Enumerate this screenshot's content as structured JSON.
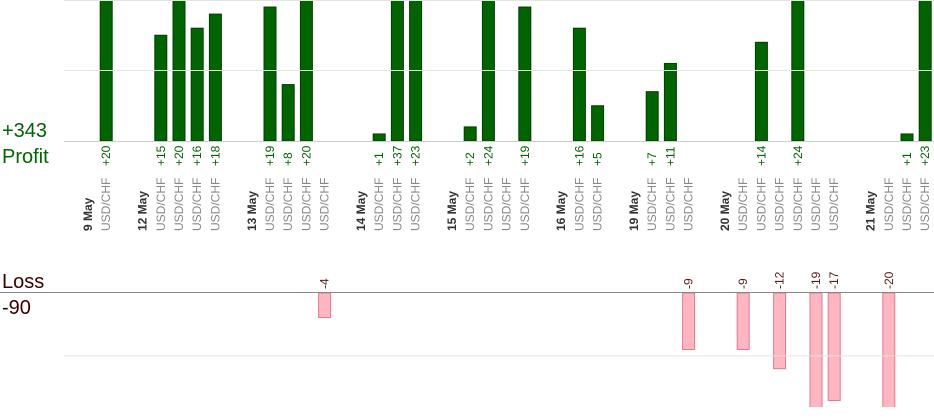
{
  "chart_data": {
    "type": "bar",
    "profit_total": {
      "value": 343,
      "label": "+343"
    },
    "profit_label": "Profit",
    "loss_label": "Loss",
    "loss_total": -90,
    "profit_color": "#006400",
    "loss_color": "#ffb6c1",
    "profit_ylim": [
      0,
      20
    ],
    "profit_yticks": [
      10,
      20
    ],
    "loss_ylim": [
      -18,
      0
    ],
    "loss_yticks": [
      -10
    ],
    "days": [
      {
        "date": "9 May",
        "trades": [
          {
            "pair": "USD/CHF",
            "value": 20,
            "value_label": "+20"
          }
        ]
      },
      {
        "date": "12 May",
        "trades": [
          {
            "pair": "USD/CHF",
            "value": 15,
            "value_label": "+15"
          },
          {
            "pair": "USD/CHF",
            "value": 20,
            "value_label": "+20"
          },
          {
            "pair": "USD/CHF",
            "value": 16,
            "value_label": "+16"
          },
          {
            "pair": "USD/CHF",
            "value": 18,
            "value_label": "+18"
          }
        ]
      },
      {
        "date": "13 May",
        "trades": [
          {
            "pair": "USD/CHF",
            "value": 19,
            "value_label": "+19"
          },
          {
            "pair": "USD/CHF",
            "value": 8,
            "value_label": "+8"
          },
          {
            "pair": "USD/CHF",
            "value": 20,
            "value_label": "+20"
          },
          {
            "pair": "USD/CHF",
            "value": -4
          }
        ]
      },
      {
        "date": "14 May",
        "trades": [
          {
            "pair": "USD/CHF",
            "value": 1,
            "value_label": "+1"
          },
          {
            "pair": "USD/CHF",
            "value": 37,
            "value_label": "+37"
          },
          {
            "pair": "USD/CHF",
            "value": 23,
            "value_label": "+23"
          }
        ]
      },
      {
        "date": "15 May",
        "trades": [
          {
            "pair": "USD/CHF",
            "value": 2,
            "value_label": "+2"
          },
          {
            "pair": "USD/CHF",
            "value": 24,
            "value_label": "+24"
          },
          {
            "pair": "USD/CHF",
            "value": null
          },
          {
            "pair": "USD/CHF",
            "value": 19,
            "value_label": "+19"
          }
        ]
      },
      {
        "date": "16 May",
        "trades": [
          {
            "pair": "USD/CHF",
            "value": 16,
            "value_label": "+16"
          },
          {
            "pair": "USD/CHF",
            "value": 5,
            "value_label": "+5"
          }
        ]
      },
      {
        "date": "19 May",
        "trades": [
          {
            "pair": "USD/CHF",
            "value": 7,
            "value_label": "+7"
          },
          {
            "pair": "USD/CHF",
            "value": 11,
            "value_label": "+11"
          },
          {
            "pair": "USD/CHF",
            "value": -9
          }
        ]
      },
      {
        "date": "20 May",
        "trades": [
          {
            "pair": "USD/CHF",
            "value": -9
          },
          {
            "pair": "USD/CHF",
            "value": 14,
            "value_label": "+14"
          },
          {
            "pair": "USD/CHF",
            "value": -12
          },
          {
            "pair": "USD/CHF",
            "value": 24,
            "value_label": "+24"
          },
          {
            "pair": "USD/CHF",
            "value": -19
          },
          {
            "pair": "USD/CHF",
            "value": -17
          }
        ]
      },
      {
        "date": "21 May",
        "trades": [
          {
            "pair": "USD/CHF",
            "value": -20
          },
          {
            "pair": "USD/CHF",
            "value": 1,
            "value_label": "+1"
          },
          {
            "pair": "USD/CHF",
            "value": 23,
            "value_label": "+23"
          }
        ]
      }
    ]
  }
}
